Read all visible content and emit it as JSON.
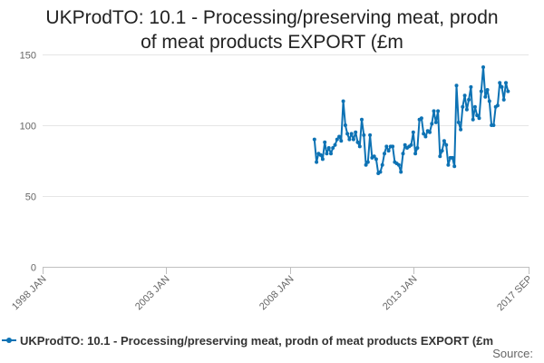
{
  "chart_data": {
    "type": "line",
    "title": "UKProdTO: 10.1 - Processing/preserving meat, prodn of meat products EXPORT (£m",
    "xlabel": "",
    "ylabel": "",
    "ylim": [
      0,
      150
    ],
    "yticks": [
      0,
      50,
      100,
      150
    ],
    "x_range": [
      "1998 JAN",
      "2017 SEP"
    ],
    "xticks": [
      "1998 JAN",
      "2003 JAN",
      "2008 JAN",
      "2013 JAN",
      "2017 SEP"
    ],
    "grid": "horizontal",
    "legend": "bottom",
    "color": "#0d72b4",
    "series": [
      {
        "name": "UKProdTO: 10.1 - Processing/preserving meat, prodn of meat products EXPORT (£m",
        "start": "2009 JAN",
        "frequency": "monthly",
        "values": [
          90,
          74,
          80,
          79,
          76,
          88,
          80,
          84,
          80,
          84,
          86,
          90,
          92,
          89,
          117,
          100,
          94,
          90,
          94,
          90,
          95,
          88,
          85,
          104,
          93,
          72,
          74,
          93,
          77,
          78,
          76,
          66,
          67,
          72,
          80,
          85,
          82,
          85,
          85,
          74,
          73,
          72,
          67,
          80,
          86,
          84,
          85,
          86,
          95,
          80,
          84,
          104,
          105,
          94,
          92,
          96,
          95,
          101,
          110,
          102,
          110,
          78,
          82,
          89,
          86,
          72,
          77,
          77,
          71,
          128,
          102,
          97,
          113,
          121,
          111,
          118,
          127,
          104,
          113,
          107,
          105,
          124,
          141,
          120,
          125,
          117,
          100,
          100,
          113,
          114,
          130,
          127,
          118,
          130,
          124
        ]
      }
    ]
  },
  "legend": {
    "label": "UKProdTO: 10.1 - Processing/preserving meat, prodn of meat products EXPORT (£m"
  },
  "credits": {
    "text": "Source:"
  }
}
